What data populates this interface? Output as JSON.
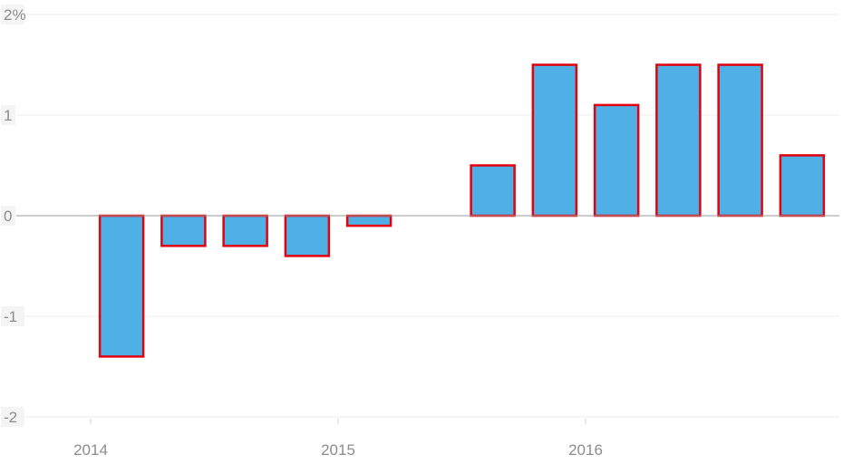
{
  "chart_data": {
    "type": "bar",
    "title": "",
    "xlabel": "",
    "ylabel": "",
    "ylim": [
      -2,
      2
    ],
    "y_ticks": [
      {
        "value": 2,
        "label": "2%"
      },
      {
        "value": 1,
        "label": "1"
      },
      {
        "value": 0,
        "label": "0"
      },
      {
        "value": -1,
        "label": "-1"
      },
      {
        "value": -2,
        "label": "-2"
      }
    ],
    "x_ticks": [
      {
        "value": 2014,
        "label": "2014"
      },
      {
        "value": 2015,
        "label": "2015"
      },
      {
        "value": 2016,
        "label": "2016"
      }
    ],
    "grid": true,
    "legend": "none",
    "bars": [
      {
        "period": "2014 Q1",
        "x": 2014.125,
        "value": -1.4
      },
      {
        "period": "2014 Q2",
        "x": 2014.375,
        "value": -0.3
      },
      {
        "period": "2014 Q3",
        "x": 2014.625,
        "value": -0.3
      },
      {
        "period": "2014 Q4",
        "x": 2014.875,
        "value": -0.4
      },
      {
        "period": "2015 Q1",
        "x": 2015.125,
        "value": -0.1
      },
      {
        "period": "2015 Q3",
        "x": 2015.625,
        "value": 0.5
      },
      {
        "period": "2015 Q4",
        "x": 2015.875,
        "value": 1.5
      },
      {
        "period": "2016 Q1",
        "x": 2016.125,
        "value": 1.1
      },
      {
        "period": "2016 Q2",
        "x": 2016.375,
        "value": 1.5
      },
      {
        "period": "2016 Q3",
        "x": 2016.625,
        "value": 1.5
      },
      {
        "period": "2016 Q4",
        "x": 2016.875,
        "value": 0.6
      }
    ],
    "colors": {
      "bar_fill": "#4eb0e5",
      "bar_stroke": "#e3000f",
      "grid": "#ececec",
      "zero_line": "#9a9a9a",
      "tick_label": "#8c8c8c",
      "y_label_bg": "#f4f4f4"
    }
  }
}
